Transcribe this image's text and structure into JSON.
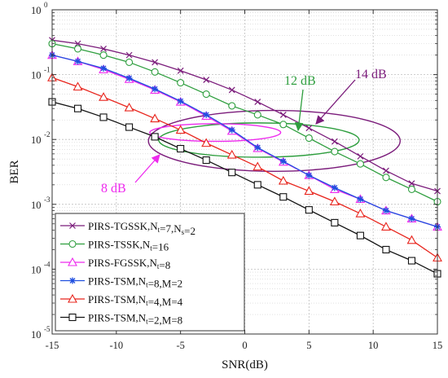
{
  "chart_data": {
    "type": "line",
    "xlabel": "SNR(dB)",
    "ylabel": "BER",
    "xlim": [
      -15,
      15
    ],
    "ylim_log10": [
      -5,
      0
    ],
    "y_scale": "log",
    "grid": true,
    "x_ticks": [
      "-15",
      "-10",
      "-5",
      "0",
      "5",
      "10",
      "15"
    ],
    "y_ticks_exponents": [
      "-5",
      "-4",
      "-3",
      "-2",
      "-1",
      "0"
    ],
    "y_tick_base": "10",
    "legend_position": "bottom-left",
    "x": [
      -15,
      -13,
      -11,
      -9,
      -7,
      -5,
      -3,
      -1,
      1,
      3,
      5,
      7,
      9,
      11,
      13,
      15
    ],
    "series": [
      {
        "name": "PIRS-TGSSK",
        "name_parts": [
          [
            "PIRS-TGSSK,",
            ""
          ],
          [
            "N",
            ""
          ],
          [
            "t",
            "sub"
          ],
          [
            "=7,",
            ""
          ],
          [
            "N",
            ""
          ],
          [
            "s",
            "sub"
          ],
          [
            "=2",
            ""
          ]
        ],
        "color": "#7b1c7b",
        "marker": "x",
        "values": [
          0.34,
          0.3,
          0.25,
          0.2,
          0.155,
          0.115,
          0.083,
          0.058,
          0.038,
          0.024,
          0.015,
          0.0093,
          0.0055,
          0.0033,
          0.0021,
          0.0016
        ]
      },
      {
        "name": "PIRS-TSSK",
        "name_parts": [
          [
            "PIRS-TSSK,",
            ""
          ],
          [
            "N",
            ""
          ],
          [
            "t",
            "sub"
          ],
          [
            "=16",
            ""
          ]
        ],
        "color": "#2e9e3e",
        "marker": "circle",
        "values": [
          0.3,
          0.25,
          0.2,
          0.155,
          0.11,
          0.075,
          0.05,
          0.033,
          0.024,
          0.017,
          0.0105,
          0.0065,
          0.0042,
          0.0026,
          0.0017,
          0.0011
        ]
      },
      {
        "name": "PIRS-FGSSK",
        "name_parts": [
          [
            "PIRS-FGSSK,",
            ""
          ],
          [
            "N",
            ""
          ],
          [
            "t",
            "sub"
          ],
          [
            "=8",
            ""
          ]
        ],
        "color": "#ee2aee",
        "marker": "triangle",
        "values": [
          0.2,
          0.16,
          0.12,
          0.085,
          0.058,
          0.038,
          0.023,
          0.0135,
          0.0073,
          0.0045,
          0.0028,
          0.0017,
          0.0012,
          0.0008,
          0.0006,
          0.00045
        ]
      },
      {
        "name": "PIRS-TSM",
        "name_parts": [
          [
            "PIRS-TSM,",
            ""
          ],
          [
            "N",
            ""
          ],
          [
            "t",
            "sub"
          ],
          [
            "=8,",
            ""
          ],
          [
            "M",
            ""
          ],
          [
            "=2",
            ""
          ]
        ],
        "color": "#1f4fe0",
        "marker": "star",
        "values": [
          0.2,
          0.16,
          0.125,
          0.088,
          0.06,
          0.039,
          0.024,
          0.014,
          0.0075,
          0.0046,
          0.0028,
          0.0018,
          0.0012,
          0.0008,
          0.0006,
          0.00045
        ]
      },
      {
        "name": "PIRS-TSM",
        "name_parts": [
          [
            "PIRS-TSM,",
            ""
          ],
          [
            "N",
            ""
          ],
          [
            "t",
            "sub"
          ],
          [
            "=4,",
            ""
          ],
          [
            "M",
            ""
          ],
          [
            "=4",
            ""
          ]
        ],
        "color": "#e8241c",
        "marker": "triangle",
        "values": [
          0.09,
          0.065,
          0.045,
          0.031,
          0.021,
          0.014,
          0.0088,
          0.0058,
          0.0038,
          0.0023,
          0.0016,
          0.0011,
          0.00072,
          0.00045,
          0.00028,
          0.00015
        ]
      },
      {
        "name": "PIRS-TSM",
        "name_parts": [
          [
            "PIRS-TSM,",
            ""
          ],
          [
            "N",
            ""
          ],
          [
            "t",
            "sub"
          ],
          [
            "=2,",
            ""
          ],
          [
            "M",
            ""
          ],
          [
            "=8",
            ""
          ]
        ],
        "color": "#111111",
        "marker": "square",
        "values": [
          0.038,
          0.03,
          0.022,
          0.0155,
          0.011,
          0.0072,
          0.0048,
          0.0031,
          0.002,
          0.0013,
          0.00082,
          0.00052,
          0.00033,
          0.0002,
          0.000135,
          8.5e-05
        ]
      }
    ],
    "annotations": [
      {
        "text": "12 dB",
        "color": "#2e9e3e"
      },
      {
        "text": "14 dB",
        "color": "#7b1c7b"
      },
      {
        "text": "8 dB",
        "color": "#ee2aee"
      }
    ]
  }
}
